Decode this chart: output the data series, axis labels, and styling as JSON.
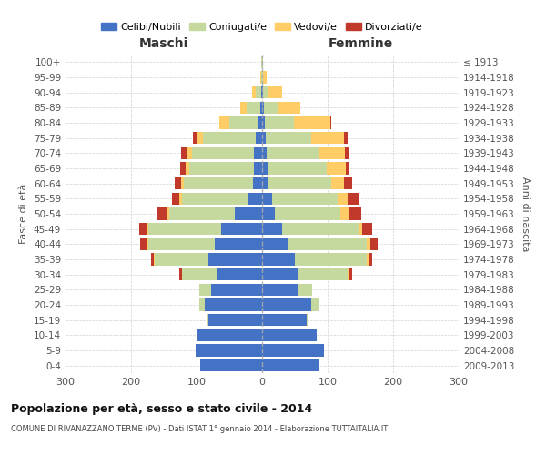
{
  "age_groups": [
    "0-4",
    "5-9",
    "10-14",
    "15-19",
    "20-24",
    "25-29",
    "30-34",
    "35-39",
    "40-44",
    "45-49",
    "50-54",
    "55-59",
    "60-64",
    "65-69",
    "70-74",
    "75-79",
    "80-84",
    "85-89",
    "90-94",
    "95-99",
    "100+"
  ],
  "birth_years": [
    "2009-2013",
    "2004-2008",
    "1999-2003",
    "1994-1998",
    "1989-1993",
    "1984-1988",
    "1979-1983",
    "1974-1978",
    "1969-1973",
    "1964-1968",
    "1959-1963",
    "1954-1958",
    "1949-1953",
    "1944-1948",
    "1939-1943",
    "1934-1938",
    "1929-1933",
    "1924-1928",
    "1919-1923",
    "1914-1918",
    "≤ 1913"
  ],
  "male": {
    "celibi": [
      95,
      102,
      98,
      82,
      88,
      78,
      70,
      82,
      72,
      62,
      42,
      22,
      14,
      13,
      12,
      10,
      5,
      3,
      2,
      0,
      0
    ],
    "coniugati": [
      0,
      0,
      0,
      2,
      8,
      18,
      52,
      82,
      102,
      112,
      100,
      100,
      105,
      98,
      95,
      80,
      45,
      20,
      8,
      2,
      1
    ],
    "vedovi": [
      0,
      0,
      0,
      0,
      0,
      0,
      0,
      1,
      2,
      2,
      3,
      4,
      5,
      6,
      8,
      10,
      15,
      10,
      5,
      1,
      0
    ],
    "divorziati": [
      0,
      0,
      0,
      0,
      0,
      0,
      5,
      5,
      10,
      12,
      15,
      12,
      10,
      8,
      8,
      5,
      0,
      0,
      0,
      0,
      0
    ]
  },
  "female": {
    "nubili": [
      88,
      95,
      83,
      68,
      75,
      55,
      55,
      50,
      40,
      30,
      20,
      15,
      10,
      8,
      7,
      5,
      4,
      3,
      2,
      0,
      0
    ],
    "coniugate": [
      0,
      0,
      0,
      3,
      12,
      22,
      75,
      110,
      120,
      118,
      100,
      100,
      95,
      90,
      80,
      70,
      45,
      20,
      8,
      2,
      1
    ],
    "vedove": [
      0,
      0,
      0,
      0,
      0,
      0,
      2,
      3,
      5,
      5,
      12,
      15,
      20,
      30,
      40,
      50,
      55,
      35,
      20,
      5,
      1
    ],
    "divorziate": [
      0,
      0,
      0,
      0,
      0,
      0,
      5,
      5,
      12,
      15,
      20,
      18,
      12,
      6,
      5,
      5,
      2,
      0,
      0,
      0,
      0
    ]
  },
  "colors": {
    "celibi": "#4472C4",
    "coniugati": "#C5D89D",
    "vedovi": "#FFCC66",
    "divorziati": "#C0392B"
  },
  "xlim": 300,
  "title": "Popolazione per età, sesso e stato civile - 2014",
  "subtitle": "COMUNE DI RIVANAZZANO TERME (PV) - Dati ISTAT 1° gennaio 2014 - Elaborazione TUTTAITALIA.IT",
  "ylabel_left": "Fasce di età",
  "ylabel_right": "Anni di nascita",
  "bg_color": "#FFFFFF",
  "grid_color": "#CCCCCC",
  "legend_labels": [
    "Celibi/Nubili",
    "Coniugati/e",
    "Vedovi/e",
    "Divorziati/e"
  ]
}
